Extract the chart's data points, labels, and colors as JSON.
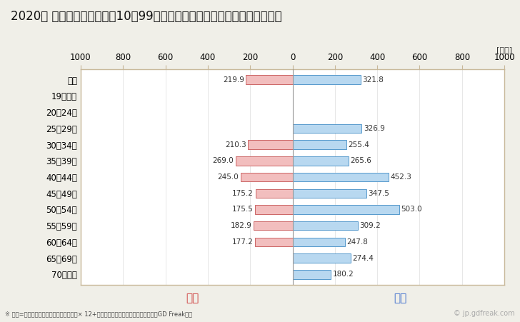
{
  "title": "2020年 民間企業（従業者数10～99人）フルタイム労働者の男女別平均年収",
  "unit_label": "[万円]",
  "categories": [
    "全体",
    "19歳以下",
    "20～24歳",
    "25～29歳",
    "30～34歳",
    "35～39歳",
    "40～44歳",
    "45～49歳",
    "50～54歳",
    "55～59歳",
    "60～64歳",
    "65～69歳",
    "70歳以上"
  ],
  "female_values": [
    219.9,
    0,
    0,
    0,
    210.3,
    269.0,
    245.0,
    175.2,
    175.5,
    182.9,
    177.2,
    0,
    0
  ],
  "male_values": [
    321.8,
    0,
    0,
    326.9,
    255.4,
    265.6,
    452.3,
    347.5,
    503.0,
    309.2,
    247.8,
    274.4,
    180.2
  ],
  "female_color": "#f2bebe",
  "male_color": "#b8d8f0",
  "female_border": "#cc6666",
  "male_border": "#5599cc",
  "female_label": "女性",
  "male_label": "男性",
  "female_label_color": "#cc3333",
  "male_label_color": "#3366cc",
  "xlim": [
    -1000,
    1000
  ],
  "xticks": [
    -1000,
    -800,
    -600,
    -400,
    -200,
    0,
    200,
    400,
    600,
    800,
    1000
  ],
  "xticklabels": [
    "1000",
    "800",
    "600",
    "400",
    "200",
    "0",
    "200",
    "400",
    "600",
    "800",
    "1000"
  ],
  "background_color": "#f0efe8",
  "plot_bg_color": "#ffffff",
  "border_color": "#c8b89a",
  "grid_color": "#dddddd",
  "footnote": "※ 年収=「きまって支給する現金給与額」× 12+「年間賞与その他特別給与額」としてGD Freak推計",
  "watermark": "© jp.gdfreak.com",
  "title_fontsize": 12,
  "axis_fontsize": 8.5,
  "label_fontsize": 7.5,
  "bar_height": 0.55
}
